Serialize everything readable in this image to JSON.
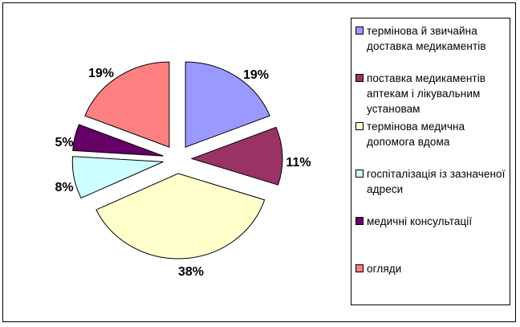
{
  "chart_data": {
    "type": "pie",
    "exploded": true,
    "legend_position": "right",
    "slices": [
      {
        "label": "термінова й звичайна доставка медикаментів",
        "value": 19,
        "text": "19%",
        "color": "#9999ff"
      },
      {
        "label": "поставка медикаментів аптекам і лікувальним установам",
        "value": 11,
        "text": "11%",
        "color": "#993366"
      },
      {
        "label": "термінова медична допомога вдома",
        "value": 38,
        "text": "38%",
        "color": "#ffffcc"
      },
      {
        "label": "госпіталізація із зазначеної адреси",
        "value": 8,
        "text": "8%",
        "color": "#ccffff"
      },
      {
        "label": "медичні консультації",
        "value": 5,
        "text": "5%",
        "color": "#660066"
      },
      {
        "label": "огляди",
        "value": 19,
        "text": "19%",
        "color": "#ff8080"
      }
    ]
  }
}
